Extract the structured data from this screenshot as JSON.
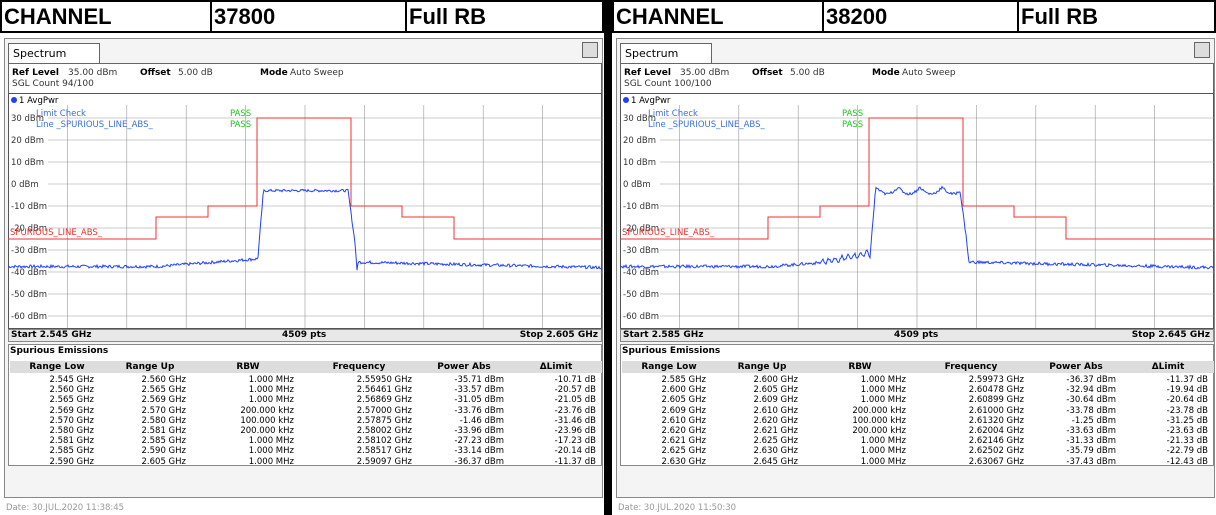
{
  "panels": [
    {
      "channel_label": "CHANNEL",
      "channel": "37800",
      "rb": "Full RB",
      "tab": "Spectrum",
      "ref_level_label": "Ref Level",
      "ref_level": "35.00 dBm",
      "offset_label": "Offset",
      "offset": "5.00 dB",
      "mode_label": "Mode",
      "mode": "Auto Sweep",
      "sgl_count": "SGL Count 94/100",
      "trace": "1 AvgPwr",
      "limit_check": "Limit Check",
      "pass1": "PASS",
      "limit_line": "Line _SPURIOUS_LINE_ABS_",
      "pass2": "PASS",
      "y_labels": [
        "30 dBm",
        "20 dBm",
        "10 dBm",
        "0 dBm",
        "-10 dBm",
        "-20 dBm",
        "-30 dBm",
        "-40 dBm",
        "-50 dBm",
        "-60 dBm"
      ],
      "line_label": "SPURIOUS_LINE_ABS_",
      "start": "Start 2.545 GHz",
      "pts": "4509 pts",
      "stop": "Stop 2.605 GHz",
      "table_title": "Spurious Emissions",
      "headers": [
        "Range Low",
        "Range Up",
        "RBW",
        "Frequency",
        "Power Abs",
        "ΔLimit"
      ],
      "rows": [
        [
          "2.545 GHz",
          "2.560 GHz",
          "1.000 MHz",
          "2.55950 GHz",
          "-35.71 dBm",
          "-10.71 dB"
        ],
        [
          "2.560 GHz",
          "2.565 GHz",
          "1.000 MHz",
          "2.56461 GHz",
          "-33.57 dBm",
          "-20.57 dB"
        ],
        [
          "2.565 GHz",
          "2.569 GHz",
          "1.000 MHz",
          "2.56869 GHz",
          "-31.05 dBm",
          "-21.05 dB"
        ],
        [
          "2.569 GHz",
          "2.570 GHz",
          "200.000 kHz",
          "2.57000 GHz",
          "-33.76 dBm",
          "-23.76 dB"
        ],
        [
          "2.570 GHz",
          "2.580 GHz",
          "100.000 kHz",
          "2.57875 GHz",
          "-1.46 dBm",
          "-31.46 dB"
        ],
        [
          "2.580 GHz",
          "2.581 GHz",
          "200.000 kHz",
          "2.58002 GHz",
          "-33.96 dBm",
          "-23.96 dB"
        ],
        [
          "2.581 GHz",
          "2.585 GHz",
          "1.000 MHz",
          "2.58102 GHz",
          "-27.23 dBm",
          "-17.23 dB"
        ],
        [
          "2.585 GHz",
          "2.590 GHz",
          "1.000 MHz",
          "2.58517 GHz",
          "-33.14 dBm",
          "-20.14 dB"
        ],
        [
          "2.590 GHz",
          "2.605 GHz",
          "1.000 MHz",
          "2.59097 GHz",
          "-36.37 dBm",
          "-11.37 dB"
        ]
      ],
      "date": "Date: 30.JUL.2020 11:38:45"
    },
    {
      "channel_label": "CHANNEL",
      "channel": "38200",
      "rb": "Full RB",
      "tab": "Spectrum",
      "ref_level_label": "Ref Level",
      "ref_level": "35.00 dBm",
      "offset_label": "Offset",
      "offset": "5.00 dB",
      "mode_label": "Mode",
      "mode": "Auto Sweep",
      "sgl_count": "SGL Count 100/100",
      "trace": "1 AvgPwr",
      "limit_check": "Limit Check",
      "pass1": "PASS",
      "limit_line": "Line _SPURIOUS_LINE_ABS_",
      "pass2": "PASS",
      "y_labels": [
        "30 dBm",
        "20 dBm",
        "10 dBm",
        "0 dBm",
        "-10 dBm",
        "-20 dBm",
        "-30 dBm",
        "-40 dBm",
        "-50 dBm",
        "-60 dBm"
      ],
      "line_label": "SPURIOUS_LINE_ABS_",
      "start": "Start 2.585 GHz",
      "pts": "4509 pts",
      "stop": "Stop 2.645 GHz",
      "table_title": "Spurious Emissions",
      "headers": [
        "Range Low",
        "Range Up",
        "RBW",
        "Frequency",
        "Power Abs",
        "ΔLimit"
      ],
      "rows": [
        [
          "2.585 GHz",
          "2.600 GHz",
          "1.000 MHz",
          "2.59973 GHz",
          "-36.37 dBm",
          "-11.37 dB"
        ],
        [
          "2.600 GHz",
          "2.605 GHz",
          "1.000 MHz",
          "2.60478 GHz",
          "-32.94 dBm",
          "-19.94 dB"
        ],
        [
          "2.605 GHz",
          "2.609 GHz",
          "1.000 MHz",
          "2.60899 GHz",
          "-30.64 dBm",
          "-20.64 dB"
        ],
        [
          "2.609 GHz",
          "2.610 GHz",
          "200.000 kHz",
          "2.61000 GHz",
          "-33.78 dBm",
          "-23.78 dB"
        ],
        [
          "2.610 GHz",
          "2.620 GHz",
          "100.000 kHz",
          "2.61320 GHz",
          "-1.25 dBm",
          "-31.25 dB"
        ],
        [
          "2.620 GHz",
          "2.621 GHz",
          "200.000 kHz",
          "2.62004 GHz",
          "-33.63 dBm",
          "-23.63 dB"
        ],
        [
          "2.621 GHz",
          "2.625 GHz",
          "1.000 MHz",
          "2.62146 GHz",
          "-31.33 dBm",
          "-21.33 dB"
        ],
        [
          "2.625 GHz",
          "2.630 GHz",
          "1.000 MHz",
          "2.62502 GHz",
          "-35.79 dBm",
          "-22.79 dB"
        ],
        [
          "2.630 GHz",
          "2.645 GHz",
          "1.000 MHz",
          "2.63067 GHz",
          "-37.43 dBm",
          "-12.43 dB"
        ]
      ],
      "date": "Date: 30.JUL.2020 11:50:30"
    }
  ]
}
